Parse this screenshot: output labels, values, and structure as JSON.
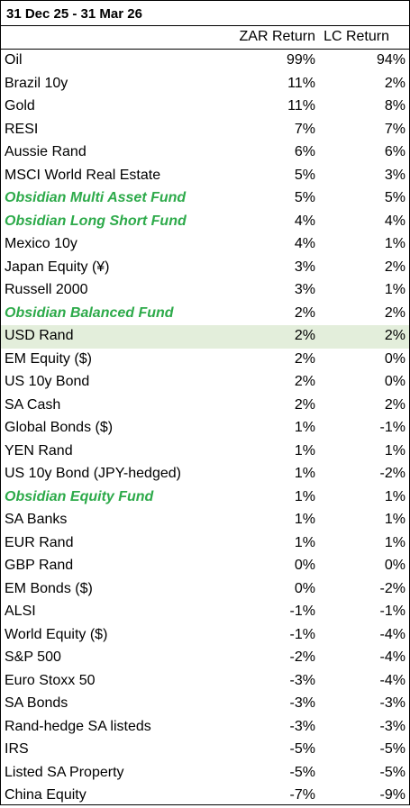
{
  "table": {
    "title": "31 Dec 25 - 31 Mar 26",
    "headers": {
      "zar": "ZAR Return",
      "lc": "LC Return"
    },
    "colors": {
      "fund_text": "#2daa4a",
      "highlight_bg": "#e3eedb"
    },
    "rows": [
      {
        "name": "Oil",
        "zar": "99%",
        "lc": "94%",
        "fund": false,
        "highlight": false
      },
      {
        "name": "Brazil 10y",
        "zar": "11%",
        "lc": "2%",
        "fund": false,
        "highlight": false
      },
      {
        "name": "Gold",
        "zar": "11%",
        "lc": "8%",
        "fund": false,
        "highlight": false
      },
      {
        "name": "RESI",
        "zar": "7%",
        "lc": "7%",
        "fund": false,
        "highlight": false
      },
      {
        "name": "Aussie Rand",
        "zar": "6%",
        "lc": "6%",
        "fund": false,
        "highlight": false
      },
      {
        "name": "MSCI World Real Estate",
        "zar": "5%",
        "lc": "3%",
        "fund": false,
        "highlight": false
      },
      {
        "name": "Obsidian Multi Asset Fund",
        "zar": "5%",
        "lc": "5%",
        "fund": true,
        "highlight": false
      },
      {
        "name": "Obsidian Long Short Fund",
        "zar": "4%",
        "lc": "4%",
        "fund": true,
        "highlight": false
      },
      {
        "name": "Mexico 10y",
        "zar": "4%",
        "lc": "1%",
        "fund": false,
        "highlight": false
      },
      {
        "name": "Japan Equity (¥)",
        "zar": "3%",
        "lc": "2%",
        "fund": false,
        "highlight": false
      },
      {
        "name": "Russell 2000",
        "zar": "3%",
        "lc": "1%",
        "fund": false,
        "highlight": false
      },
      {
        "name": "Obsidian Balanced Fund",
        "zar": "2%",
        "lc": "2%",
        "fund": true,
        "highlight": false
      },
      {
        "name": "USD Rand",
        "zar": "2%",
        "lc": "2%",
        "fund": false,
        "highlight": true
      },
      {
        "name": "EM Equity ($)",
        "zar": "2%",
        "lc": "0%",
        "fund": false,
        "highlight": false
      },
      {
        "name": "US 10y Bond",
        "zar": "2%",
        "lc": "0%",
        "fund": false,
        "highlight": false
      },
      {
        "name": "SA Cash",
        "zar": "2%",
        "lc": "2%",
        "fund": false,
        "highlight": false
      },
      {
        "name": "Global Bonds ($)",
        "zar": "1%",
        "lc": "-1%",
        "fund": false,
        "highlight": false
      },
      {
        "name": "YEN Rand",
        "zar": "1%",
        "lc": "1%",
        "fund": false,
        "highlight": false
      },
      {
        "name": "US 10y Bond (JPY-hedged)",
        "zar": "1%",
        "lc": "-2%",
        "fund": false,
        "highlight": false
      },
      {
        "name": "Obsidian Equity Fund",
        "zar": "1%",
        "lc": "1%",
        "fund": true,
        "highlight": false
      },
      {
        "name": "SA Banks",
        "zar": "1%",
        "lc": "1%",
        "fund": false,
        "highlight": false
      },
      {
        "name": "EUR Rand",
        "zar": "1%",
        "lc": "1%",
        "fund": false,
        "highlight": false
      },
      {
        "name": "GBP Rand",
        "zar": "0%",
        "lc": "0%",
        "fund": false,
        "highlight": false
      },
      {
        "name": "EM Bonds ($)",
        "zar": "0%",
        "lc": "-2%",
        "fund": false,
        "highlight": false
      },
      {
        "name": "ALSI",
        "zar": "-1%",
        "lc": "-1%",
        "fund": false,
        "highlight": false
      },
      {
        "name": "World Equity ($)",
        "zar": "-1%",
        "lc": "-4%",
        "fund": false,
        "highlight": false
      },
      {
        "name": "S&P 500",
        "zar": "-2%",
        "lc": "-4%",
        "fund": false,
        "highlight": false
      },
      {
        "name": "Euro Stoxx 50",
        "zar": "-3%",
        "lc": "-4%",
        "fund": false,
        "highlight": false
      },
      {
        "name": "SA Bonds",
        "zar": "-3%",
        "lc": "-3%",
        "fund": false,
        "highlight": false
      },
      {
        "name": "Rand-hedge SA listeds",
        "zar": "-3%",
        "lc": "-3%",
        "fund": false,
        "highlight": false
      },
      {
        "name": "IRS",
        "zar": "-5%",
        "lc": "-5%",
        "fund": false,
        "highlight": false
      },
      {
        "name": "Listed SA Property",
        "zar": "-5%",
        "lc": "-5%",
        "fund": false,
        "highlight": false
      },
      {
        "name": "China Equity",
        "zar": "-7%",
        "lc": "-9%",
        "fund": false,
        "highlight": false
      }
    ]
  }
}
